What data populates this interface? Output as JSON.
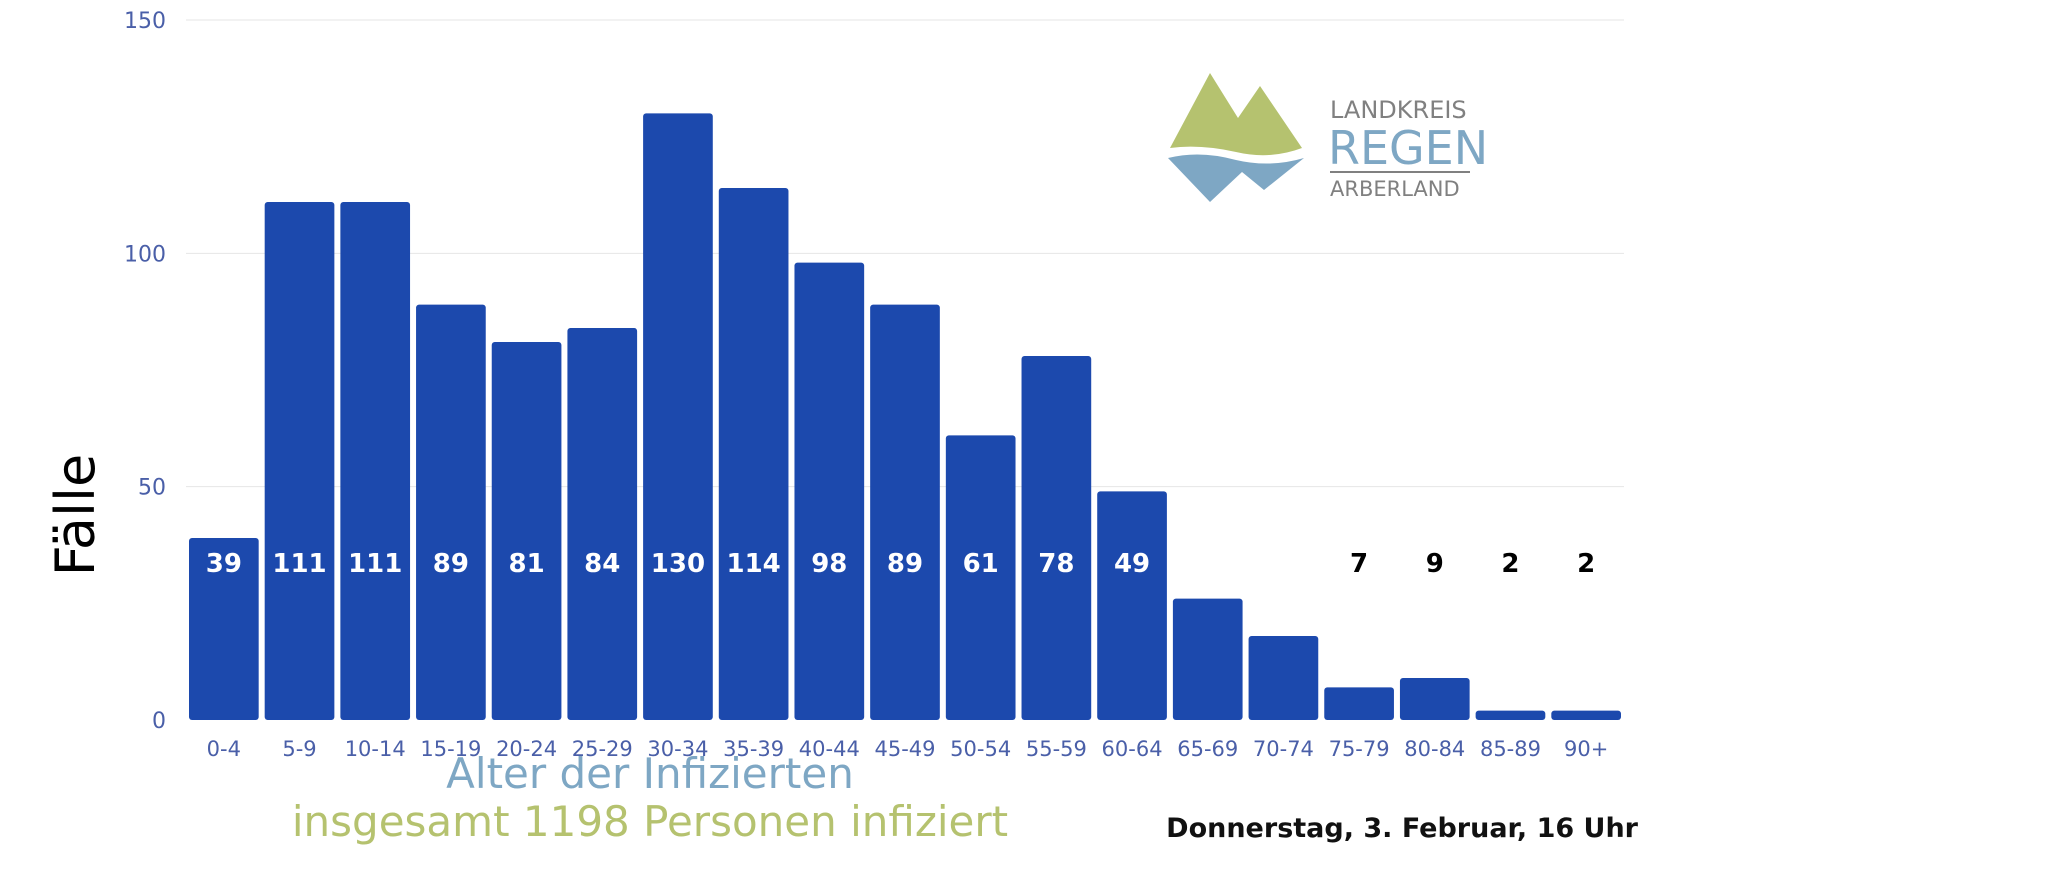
{
  "chart_data": {
    "type": "bar",
    "title": "Alter der Infizierten",
    "subtitle": "insgesamt 1198 Personen infiziert",
    "xlabel": "",
    "ylabel": "Fälle",
    "ylim": [
      0,
      150
    ],
    "yticks": [
      0,
      50,
      100,
      150
    ],
    "grid": true,
    "categories": [
      "0-4",
      "5-9",
      "10-14",
      "15-19",
      "20-24",
      "25-29",
      "30-34",
      "35-39",
      "40-44",
      "45-49",
      "50-54",
      "55-59",
      "60-64",
      "65-69",
      "70-74",
      "75-79",
      "80-84",
      "85-89",
      "90+"
    ],
    "values": [
      39,
      111,
      111,
      89,
      81,
      84,
      130,
      114,
      98,
      89,
      61,
      78,
      49,
      26,
      18,
      7,
      9,
      2,
      2
    ],
    "bar_color": "#1c49ad",
    "label_color_inside": "#ffffff",
    "label_color_outside": "#000000"
  },
  "date_text": "Donnerstag, 3. Februar, 16 Uhr",
  "logo": {
    "line1": "LANDKREIS",
    "line2": "REGEN",
    "line3": "ARBERLAND",
    "green": "#b5c26f",
    "blue": "#7ea7c4",
    "gray": "#808080"
  }
}
